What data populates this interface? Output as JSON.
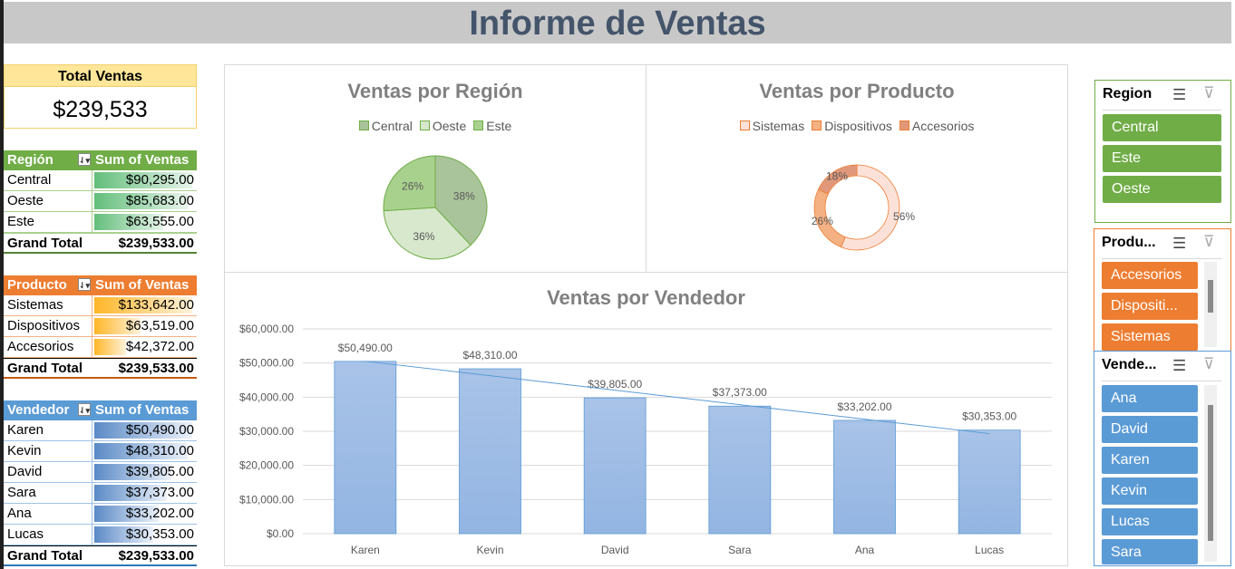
{
  "title": "Informe de Ventas",
  "kpi": {
    "label": "Total Ventas",
    "value": "$239,533"
  },
  "pivots": {
    "region": {
      "header1": "Región",
      "header2": "Sum of Ventas",
      "rows": [
        {
          "label": "Central",
          "value": "$90,295.00",
          "pct": 1.0
        },
        {
          "label": "Oeste",
          "value": "$85,683.00",
          "pct": 0.95
        },
        {
          "label": "Este",
          "value": "$63,555.00",
          "pct": 0.7
        }
      ],
      "total_label": "Grand Total",
      "total": "$239,533.00"
    },
    "producto": {
      "header1": "Producto",
      "header2": "Sum of Ventas",
      "rows": [
        {
          "label": "Sistemas",
          "value": "$133,642.00",
          "pct": 1.0
        },
        {
          "label": "Dispositivos",
          "value": "$63,519.00",
          "pct": 0.47
        },
        {
          "label": "Accesorios",
          "value": "$42,372.00",
          "pct": 0.32
        }
      ],
      "total_label": "Grand Total",
      "total": "$239,533.00"
    },
    "vendedor": {
      "header1": "Vendedor",
      "header2": "Sum of Ventas",
      "rows": [
        {
          "label": "Karen",
          "value": "$50,490.00",
          "pct": 1.0
        },
        {
          "label": "Kevin",
          "value": "$48,310.00",
          "pct": 0.957
        },
        {
          "label": "David",
          "value": "$39,805.00",
          "pct": 0.788
        },
        {
          "label": "Sara",
          "value": "$37,373.00",
          "pct": 0.74
        },
        {
          "label": "Ana",
          "value": "$33,202.00",
          "pct": 0.658
        },
        {
          "label": "Lucas",
          "value": "$30,353.00",
          "pct": 0.601
        }
      ],
      "total_label": "Grand Total",
      "total": "$239,533.00"
    }
  },
  "chart_data": [
    {
      "type": "pie",
      "title": "Ventas por Región",
      "categories": [
        "Central",
        "Oeste",
        "Este"
      ],
      "values": [
        38,
        36,
        26
      ],
      "labels": [
        "38%",
        "36%",
        "26%"
      ],
      "colors": [
        "#a9c49a",
        "#d7e8cc",
        "#a9d18e"
      ],
      "legend": "top"
    },
    {
      "type": "pie",
      "title": "Ventas por Producto",
      "categories": [
        "Sistemas",
        "Dispositivos",
        "Accesorios"
      ],
      "values": [
        56,
        26,
        18
      ],
      "labels": [
        "56%",
        "26%",
        "18%"
      ],
      "colors": [
        "#fbe1d8",
        "#f4b183",
        "#e1987a"
      ],
      "legend": "top"
    },
    {
      "type": "bar",
      "title": "Ventas por Vendedor",
      "categories": [
        "Karen",
        "Kevin",
        "David",
        "Sara",
        "Ana",
        "Lucas"
      ],
      "values": [
        50490,
        48310,
        39805,
        37373,
        33202,
        30353
      ],
      "data_labels": [
        "$50,490.00",
        "$48,310.00",
        "$39,805.00",
        "$37,373.00",
        "$33,202.00",
        "$30,353.00"
      ],
      "y_ticks": [
        "$0.00",
        "$10,000.00",
        "$20,000.00",
        "$30,000.00",
        "$40,000.00",
        "$50,000.00",
        "$60,000.00"
      ],
      "ylim": [
        0,
        60000
      ],
      "grid": true,
      "trendline": "linear"
    }
  ],
  "slicers": {
    "region": {
      "title": "Region",
      "items": [
        "Central",
        "Este",
        "Oeste"
      ],
      "color": "#70ad47"
    },
    "producto": {
      "title": "Produ...",
      "items": [
        "Accesorios",
        "Dispositi...",
        "Sistemas"
      ],
      "color": "#ed7d31"
    },
    "vendedor": {
      "title": "Vende...",
      "items": [
        "Ana",
        "David",
        "Karen",
        "Kevin",
        "Lucas",
        "Sara"
      ],
      "color": "#5b9bd5"
    }
  },
  "icons": {
    "multiselect": "multi-select-icon",
    "clear": "clear-filter-icon",
    "dropdown": "filter-dropdown-icon"
  }
}
